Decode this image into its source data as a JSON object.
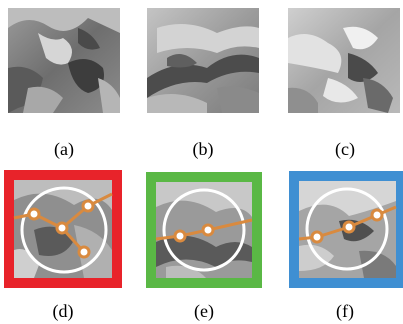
{
  "figure": {
    "panels": [
      {
        "id": "a",
        "caption": "(a)",
        "kind": "terrain-patch"
      },
      {
        "id": "b",
        "caption": "(b)",
        "kind": "terrain-patch"
      },
      {
        "id": "c",
        "caption": "(c)",
        "kind": "terrain-patch"
      },
      {
        "id": "d",
        "caption": "(d)",
        "kind": "terrain-with-graph",
        "frame_color": "#e8232a",
        "graph_nodes": 4
      },
      {
        "id": "e",
        "caption": "(e)",
        "kind": "terrain-with-graph",
        "frame_color": "#5ab845",
        "graph_nodes": 2
      },
      {
        "id": "f",
        "caption": "(f)",
        "kind": "terrain-with-graph",
        "frame_color": "#3f8fd2",
        "graph_nodes": 3
      }
    ],
    "colors": {
      "graph_line": "#d98a3f",
      "graph_node_fill": "#ffffff",
      "circle": "#ffffff",
      "terrain_dark": "#4a4a4a",
      "terrain_light": "#d8d8d8"
    }
  }
}
